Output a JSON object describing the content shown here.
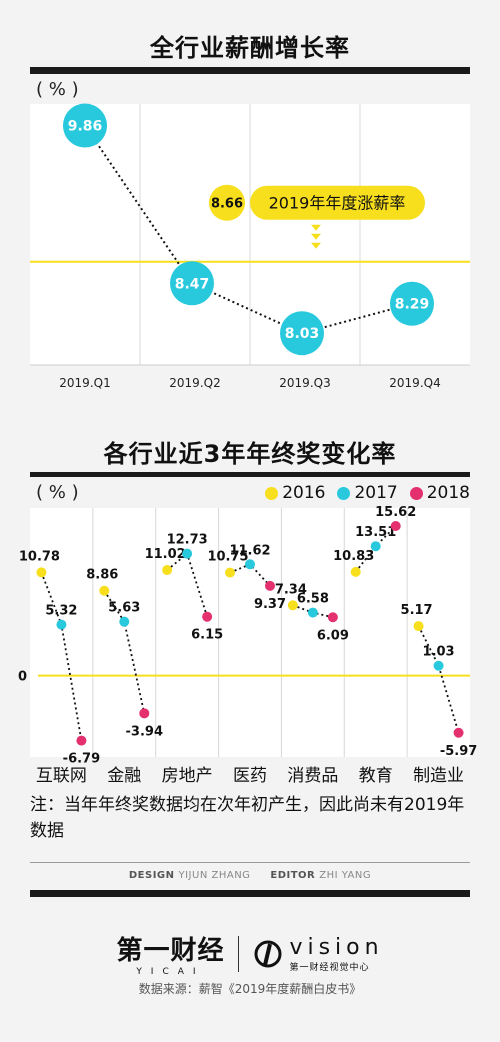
{
  "chart1_title": "全行业薪酬增长率",
  "chart2_title": "各行业近3年年终奖变化率",
  "unit_label": "( % )",
  "chart_data": [
    {
      "type": "line",
      "title": "全行业薪酬增长率",
      "ylabel": "( % )",
      "x": [
        "2019.Q1",
        "2019.Q2",
        "2019.Q3",
        "2019.Q4"
      ],
      "series": [
        {
          "values": [
            9.86,
            8.47,
            8.03,
            8.29
          ]
        }
      ],
      "reference_line": {
        "value": 8.66,
        "label": "2019年年度涨薪率"
      },
      "colors": {
        "points": "#29c9dd",
        "reference": "#f7df1e"
      }
    },
    {
      "type": "scatter",
      "title": "各行业近3年年终奖变化率",
      "ylabel": "( % )",
      "categories": [
        "互联网",
        "金融",
        "房地产",
        "医药",
        "消费品",
        "教育",
        "制造业"
      ],
      "series": [
        {
          "name": "2016",
          "color": "#f7df1e",
          "values": [
            10.78,
            8.86,
            11.02,
            10.75,
            7.34,
            10.83,
            5.17
          ]
        },
        {
          "name": "2017",
          "color": "#29c9dd",
          "values": [
            5.32,
            5.63,
            12.73,
            11.62,
            6.58,
            13.51,
            1.03
          ]
        },
        {
          "name": "2018",
          "color": "#e5306f",
          "values": [
            -6.79,
            -3.94,
            6.15,
            9.37,
            6.09,
            15.62,
            -5.97
          ]
        }
      ],
      "zero_line": {
        "value": 0,
        "label": "0"
      }
    }
  ],
  "note": "注：当年年终奖数据均在次年初产生，因此尚未有2019年数据",
  "credits": {
    "design_label": "DESIGN",
    "design_name": "YIJUN ZHANG",
    "editor_label": "EDITOR",
    "editor_name": "ZHI YANG"
  },
  "brand": {
    "name": "第一财经",
    "sub": "YICAI",
    "vision": "vision",
    "vision_sub": "第一财经视觉中心"
  },
  "source": "数据来源：薪智《2019年度薪酬白皮书》"
}
